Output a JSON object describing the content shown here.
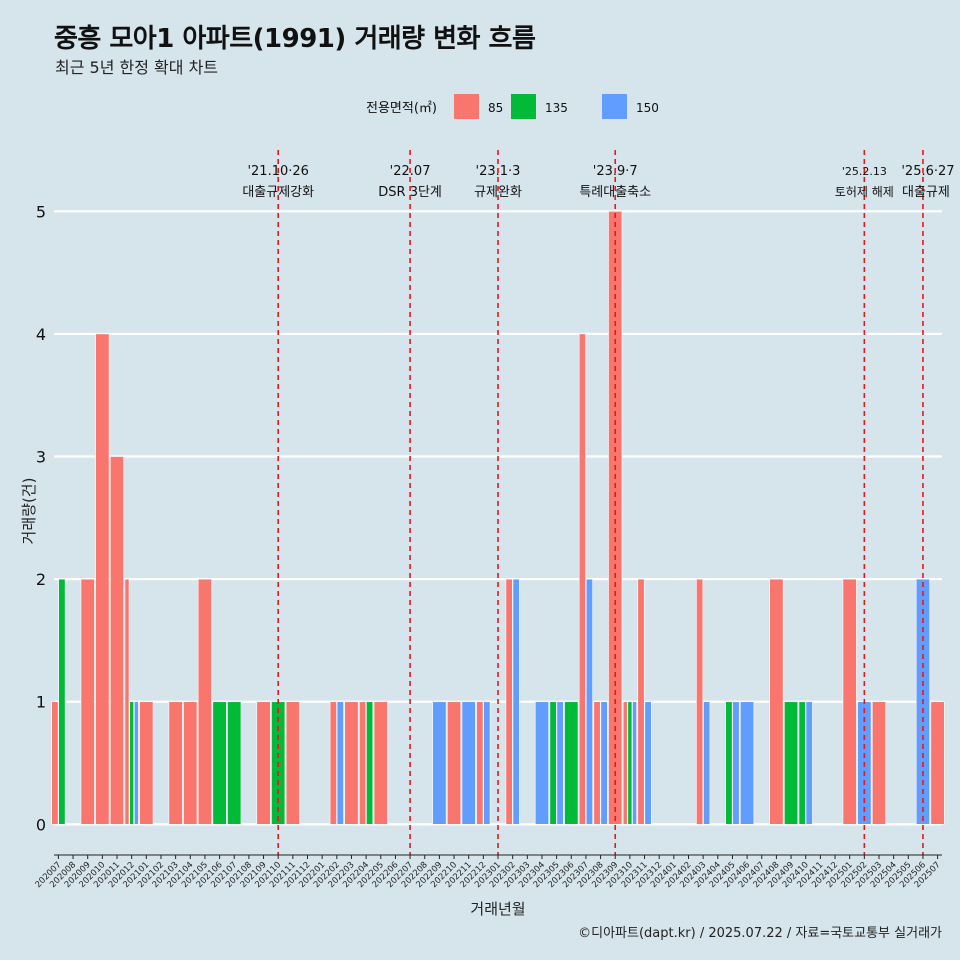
{
  "title": "중흥 모아1 아파트(1991) 거래량 변화 흐름",
  "subtitle": "최근 5년 한정 확대 차트",
  "caption": "©디아파트(dapt.kr) / 2025.07.22 / 자료=국토교통부 실거래가",
  "colors": {
    "85": "#f8766d",
    "135": "#00ba38",
    "150": "#619cff",
    "event_line": "#e8161d"
  },
  "chart_data": {
    "type": "bar",
    "stacking": "dodge",
    "xlabel": "거래년월",
    "ylabel": "거래량(건)",
    "ylim": [
      -0.25,
      5.5
    ],
    "yticks": [
      0,
      1,
      2,
      3,
      4,
      5
    ],
    "grid": true,
    "legend": {
      "title": "전용면적(㎡)",
      "position": "top",
      "entries": [
        "85",
        "135",
        "150"
      ]
    },
    "categories": [
      "202007",
      "202008",
      "202009",
      "202010",
      "202011",
      "202012",
      "202101",
      "202102",
      "202103",
      "202104",
      "202105",
      "202106",
      "202107",
      "202108",
      "202109",
      "202110",
      "202111",
      "202112",
      "202201",
      "202202",
      "202203",
      "202204",
      "202205",
      "202206",
      "202207",
      "202208",
      "202209",
      "202210",
      "202211",
      "202212",
      "202301",
      "202302",
      "202303",
      "202304",
      "202305",
      "202306",
      "202307",
      "202308",
      "202309",
      "202310",
      "202311",
      "202312",
      "202401",
      "202402",
      "202403",
      "202404",
      "202405",
      "202406",
      "202407",
      "202408",
      "202409",
      "202410",
      "202411",
      "202412",
      "202501",
      "202502",
      "202503",
      "202504",
      "202505",
      "202506",
      "202507"
    ],
    "bars": [
      {
        "month": "202007",
        "series": "85",
        "value": 1
      },
      {
        "month": "202007",
        "series": "135",
        "value": 2
      },
      {
        "month": "202009",
        "series": "85",
        "value": 2
      },
      {
        "month": "202010",
        "series": "85",
        "value": 4
      },
      {
        "month": "202011",
        "series": "85",
        "value": 3
      },
      {
        "month": "202012",
        "series": "85",
        "value": 2
      },
      {
        "month": "202012",
        "series": "135",
        "value": 1
      },
      {
        "month": "202012",
        "series": "150",
        "value": 1
      },
      {
        "month": "202101",
        "series": "85",
        "value": 1
      },
      {
        "month": "202103",
        "series": "85",
        "value": 1
      },
      {
        "month": "202104",
        "series": "85",
        "value": 1
      },
      {
        "month": "202105",
        "series": "85",
        "value": 2
      },
      {
        "month": "202106",
        "series": "135",
        "value": 1
      },
      {
        "month": "202107",
        "series": "135",
        "value": 1
      },
      {
        "month": "202109",
        "series": "85",
        "value": 1
      },
      {
        "month": "202110",
        "series": "135",
        "value": 1
      },
      {
        "month": "202111",
        "series": "85",
        "value": 1
      },
      {
        "month": "202202",
        "series": "85",
        "value": 1
      },
      {
        "month": "202202",
        "series": "150",
        "value": 1
      },
      {
        "month": "202203",
        "series": "85",
        "value": 1
      },
      {
        "month": "202204",
        "series": "85",
        "value": 1
      },
      {
        "month": "202204",
        "series": "135",
        "value": 1
      },
      {
        "month": "202205",
        "series": "85",
        "value": 1
      },
      {
        "month": "202209",
        "series": "150",
        "value": 1
      },
      {
        "month": "202210",
        "series": "85",
        "value": 1
      },
      {
        "month": "202211",
        "series": "150",
        "value": 1
      },
      {
        "month": "202212",
        "series": "85",
        "value": 1
      },
      {
        "month": "202212",
        "series": "150",
        "value": 1
      },
      {
        "month": "202302",
        "series": "85",
        "value": 2
      },
      {
        "month": "202302",
        "series": "150",
        "value": 2
      },
      {
        "month": "202304",
        "series": "150",
        "value": 1
      },
      {
        "month": "202305",
        "series": "135",
        "value": 1
      },
      {
        "month": "202305",
        "series": "150",
        "value": 1
      },
      {
        "month": "202306",
        "series": "135",
        "value": 1
      },
      {
        "month": "202307",
        "series": "85",
        "value": 4
      },
      {
        "month": "202307",
        "series": "150",
        "value": 2
      },
      {
        "month": "202308",
        "series": "85",
        "value": 1
      },
      {
        "month": "202308",
        "series": "150",
        "value": 1
      },
      {
        "month": "202309",
        "series": "85",
        "value": 5
      },
      {
        "month": "202310",
        "series": "85",
        "value": 1
      },
      {
        "month": "202310",
        "series": "135",
        "value": 1
      },
      {
        "month": "202310",
        "series": "150",
        "value": 1
      },
      {
        "month": "202311",
        "series": "85",
        "value": 2
      },
      {
        "month": "202311",
        "series": "150",
        "value": 1
      },
      {
        "month": "202403",
        "series": "85",
        "value": 2
      },
      {
        "month": "202403",
        "series": "150",
        "value": 1
      },
      {
        "month": "202405",
        "series": "135",
        "value": 1
      },
      {
        "month": "202405",
        "series": "150",
        "value": 1
      },
      {
        "month": "202406",
        "series": "150",
        "value": 1
      },
      {
        "month": "202408",
        "series": "85",
        "value": 2
      },
      {
        "month": "202409",
        "series": "135",
        "value": 1
      },
      {
        "month": "202410",
        "series": "135",
        "value": 1
      },
      {
        "month": "202410",
        "series": "150",
        "value": 1
      },
      {
        "month": "202501",
        "series": "85",
        "value": 2
      },
      {
        "month": "202502",
        "series": "150",
        "value": 1
      },
      {
        "month": "202503",
        "series": "85",
        "value": 1
      },
      {
        "month": "202506",
        "series": "150",
        "value": 2
      },
      {
        "month": "202507",
        "series": "85",
        "value": 1
      }
    ],
    "events": [
      {
        "month": "202110",
        "date": "'21.10·26",
        "label": "대출규제강화"
      },
      {
        "month": "202207",
        "date": "'22.07",
        "label": "DSR 3단계"
      },
      {
        "month": "202301",
        "date": "'23.1·3",
        "label": "규제완화"
      },
      {
        "month": "202309",
        "date": "'23.9·7",
        "label": "특례대출축소"
      },
      {
        "month": "202502",
        "date": "'25.2.13",
        "label": "토허제 해제"
      },
      {
        "month": "202506",
        "date": "'25.6·27",
        "label": "대출규제"
      }
    ]
  }
}
